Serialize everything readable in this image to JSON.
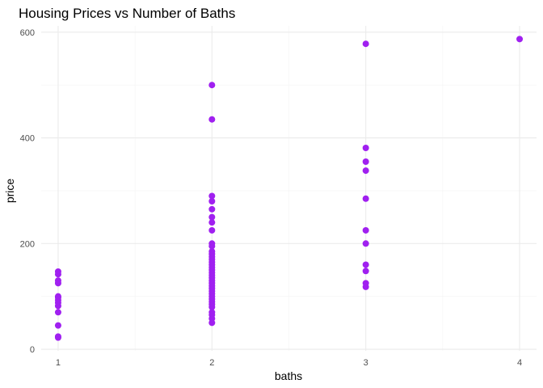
{
  "chart_data": {
    "type": "scatter",
    "title": "Housing Prices vs Number of Baths",
    "xlabel": "baths",
    "ylabel": "price",
    "xlim": [
      0.89,
      4.11
    ],
    "ylim": [
      -3,
      612
    ],
    "x_ticks": [
      1,
      2,
      3,
      4
    ],
    "y_ticks": [
      0,
      200,
      400,
      600
    ],
    "grid": true,
    "legend": "none",
    "point_color": "#A020F0",
    "points": [
      {
        "x": 1,
        "y": 22
      },
      {
        "x": 1,
        "y": 24
      },
      {
        "x": 1,
        "y": 45
      },
      {
        "x": 1,
        "y": 70
      },
      {
        "x": 1,
        "y": 82
      },
      {
        "x": 1,
        "y": 88
      },
      {
        "x": 1,
        "y": 93
      },
      {
        "x": 1,
        "y": 98
      },
      {
        "x": 1,
        "y": 100
      },
      {
        "x": 1,
        "y": 125
      },
      {
        "x": 1,
        "y": 130
      },
      {
        "x": 1,
        "y": 142
      },
      {
        "x": 1,
        "y": 147
      },
      {
        "x": 2,
        "y": 50
      },
      {
        "x": 2,
        "y": 58
      },
      {
        "x": 2,
        "y": 65
      },
      {
        "x": 2,
        "y": 70
      },
      {
        "x": 2,
        "y": 80
      },
      {
        "x": 2,
        "y": 85
      },
      {
        "x": 2,
        "y": 90
      },
      {
        "x": 2,
        "y": 95
      },
      {
        "x": 2,
        "y": 100
      },
      {
        "x": 2,
        "y": 105
      },
      {
        "x": 2,
        "y": 110
      },
      {
        "x": 2,
        "y": 115
      },
      {
        "x": 2,
        "y": 120
      },
      {
        "x": 2,
        "y": 125
      },
      {
        "x": 2,
        "y": 130
      },
      {
        "x": 2,
        "y": 135
      },
      {
        "x": 2,
        "y": 140
      },
      {
        "x": 2,
        "y": 145
      },
      {
        "x": 2,
        "y": 150
      },
      {
        "x": 2,
        "y": 155
      },
      {
        "x": 2,
        "y": 160
      },
      {
        "x": 2,
        "y": 165
      },
      {
        "x": 2,
        "y": 170
      },
      {
        "x": 2,
        "y": 175
      },
      {
        "x": 2,
        "y": 180
      },
      {
        "x": 2,
        "y": 185
      },
      {
        "x": 2,
        "y": 195
      },
      {
        "x": 2,
        "y": 200
      },
      {
        "x": 2,
        "y": 225
      },
      {
        "x": 2,
        "y": 240
      },
      {
        "x": 2,
        "y": 250
      },
      {
        "x": 2,
        "y": 265
      },
      {
        "x": 2,
        "y": 280
      },
      {
        "x": 2,
        "y": 290
      },
      {
        "x": 2,
        "y": 435
      },
      {
        "x": 2,
        "y": 500
      },
      {
        "x": 3,
        "y": 118
      },
      {
        "x": 3,
        "y": 125
      },
      {
        "x": 3,
        "y": 148
      },
      {
        "x": 3,
        "y": 160
      },
      {
        "x": 3,
        "y": 200
      },
      {
        "x": 3,
        "y": 225
      },
      {
        "x": 3,
        "y": 285
      },
      {
        "x": 3,
        "y": 338
      },
      {
        "x": 3,
        "y": 355
      },
      {
        "x": 3,
        "y": 381
      },
      {
        "x": 3,
        "y": 578
      },
      {
        "x": 4,
        "y": 587
      }
    ]
  }
}
